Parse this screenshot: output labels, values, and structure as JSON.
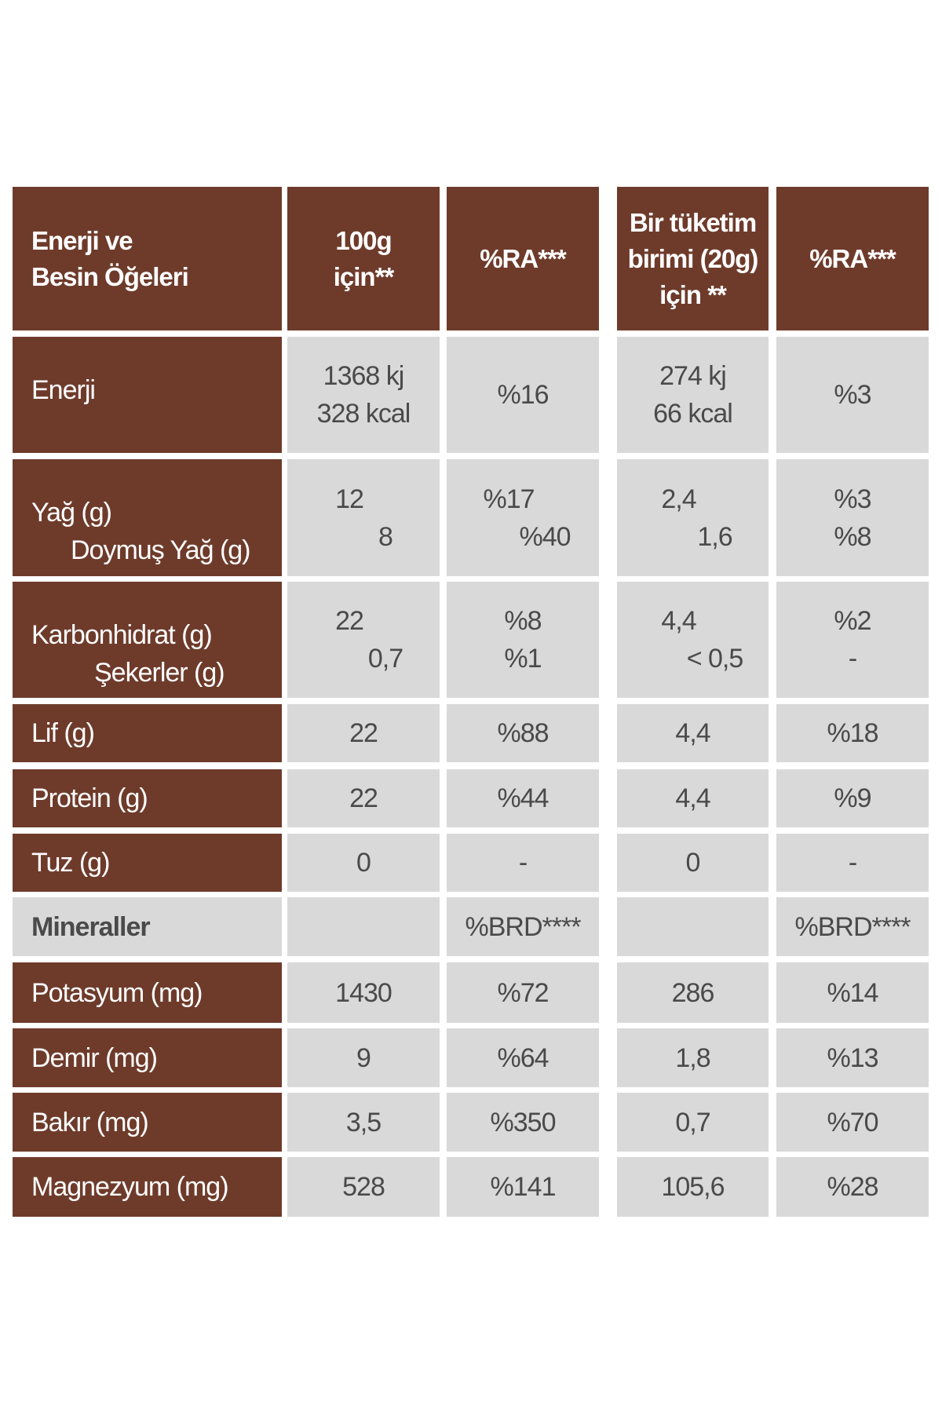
{
  "table": {
    "header": [
      [
        "Enerji ve",
        "Besin Öğeleri"
      ],
      [
        "100g",
        "için**"
      ],
      "%RA***",
      [
        "Bir tüketim",
        "birimi (20g)",
        "için **"
      ],
      "%RA***"
    ],
    "rows": [
      [
        [
          "Enerji"
        ],
        [
          "1368 kj",
          "328 kcal"
        ],
        "%16",
        [
          "274 kj",
          "66 kcal"
        ],
        "%3"
      ],
      [
        [
          "Yağ (g)",
          "Doymuş Yağ (g)"
        ],
        [
          "12",
          "8"
        ],
        [
          "%17",
          "%40"
        ],
        [
          "2,4",
          "1,6"
        ],
        [
          "%3",
          "%8"
        ]
      ],
      [
        [
          "Karbonhidrat (g)",
          "Şekerler (g)"
        ],
        [
          "22",
          "0,7"
        ],
        [
          "%8",
          "%1"
        ],
        [
          "4,4",
          "< 0,5"
        ],
        [
          "%2",
          "-"
        ]
      ],
      [
        "Lif (g)",
        "22",
        "%88",
        "4,4",
        "%18"
      ],
      [
        "Protein (g)",
        "22",
        "%44",
        "4,4",
        "%9"
      ],
      [
        "Tuz (g)",
        "0",
        "-",
        "0",
        "-"
      ],
      [
        "Mineraller",
        null,
        "%BRD****",
        null,
        "%BRD****"
      ],
      [
        "Potasyum (mg)",
        "1430",
        "%72",
        "286",
        "%14"
      ],
      [
        "Demir (mg)",
        "9",
        "%64",
        "1,8",
        "%13"
      ],
      [
        "Bakır (mg)",
        "3,5",
        "%350",
        "0,7",
        "%70"
      ],
      [
        "Magnezyum (mg)",
        "528",
        "%141",
        "105,6",
        "%28"
      ]
    ]
  }
}
